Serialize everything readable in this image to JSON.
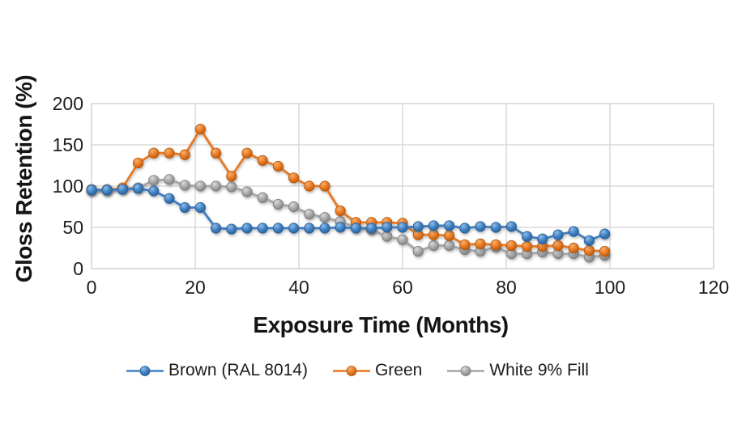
{
  "figure": {
    "background": "#ffffff",
    "text_color": "#1e1c1c",
    "grid_color": "#d3d3d3"
  },
  "chart_data": {
    "type": "line",
    "title": "",
    "xlabel": "Exposure Time (Months)",
    "ylabel": "Gloss Retention (%)",
    "xlim": [
      0,
      120
    ],
    "ylim": [
      0,
      200
    ],
    "x_ticks": [
      0,
      20,
      40,
      60,
      80,
      100,
      120
    ],
    "y_ticks": [
      0,
      50,
      100,
      150,
      200
    ],
    "grid": true,
    "legend_position": "bottom",
    "marker_style": "glossy-ball",
    "x": [
      0,
      3,
      6,
      9,
      12,
      15,
      18,
      21,
      24,
      27,
      30,
      33,
      36,
      39,
      42,
      45,
      48,
      51,
      54,
      57,
      60,
      63,
      66,
      69,
      72,
      75,
      78,
      81,
      84,
      87,
      90,
      93,
      96,
      99
    ],
    "series": [
      {
        "name": "Brown (RAL 8014)",
        "color": "#3f7fc1",
        "color_light": "#8fbce6",
        "color_dark": "#285e94",
        "values": [
          95,
          95,
          96,
          97,
          94,
          85,
          74,
          74,
          49,
          48,
          49,
          49,
          49,
          49,
          49,
          49,
          50,
          49,
          49,
          50,
          50,
          51,
          52,
          52,
          49,
          51,
          50,
          51,
          39,
          36,
          41,
          45,
          34,
          42
        ]
      },
      {
        "name": "Green",
        "color": "#e87822",
        "color_light": "#f6b06e",
        "color_dark": "#b55708",
        "values": [
          95,
          95,
          98,
          128,
          140,
          140,
          138,
          169,
          140,
          112,
          140,
          131,
          124,
          110,
          100,
          100,
          70,
          56,
          56,
          56,
          55,
          41,
          41,
          40,
          29,
          30,
          29,
          28,
          27,
          27,
          28,
          25,
          22,
          21
        ]
      },
      {
        "name": "White 9% Fill",
        "color": "#a6a6a6",
        "color_light": "#d9d9d9",
        "color_dark": "#7d7d7d",
        "values": [
          96,
          96,
          97,
          98,
          107,
          108,
          101,
          100,
          100,
          99,
          93,
          86,
          78,
          75,
          66,
          62,
          57,
          50,
          47,
          39,
          35,
          21,
          28,
          28,
          23,
          21,
          26,
          18,
          18,
          20,
          18,
          18,
          14,
          16
        ]
      }
    ]
  }
}
